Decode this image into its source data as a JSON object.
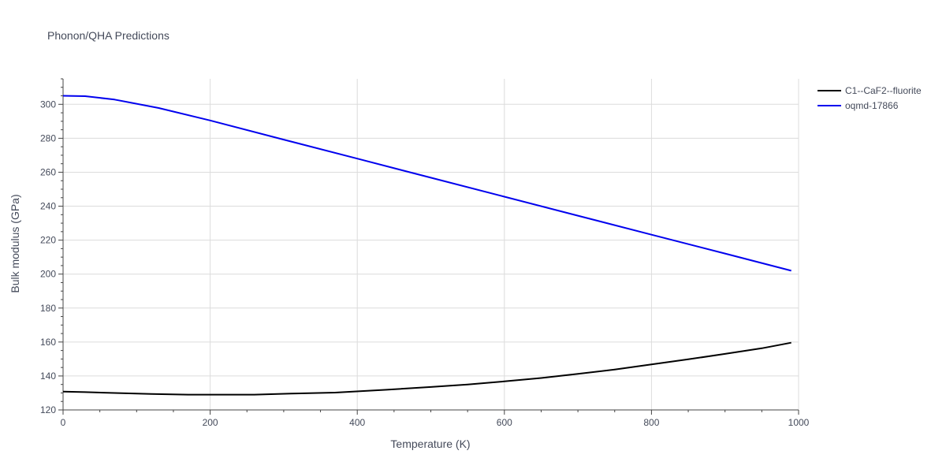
{
  "chart_data": {
    "type": "line",
    "title": "Phonon/QHA Predictions",
    "xlabel": "Temperature (K)",
    "ylabel": "Bulk modulus (GPa)",
    "xlim": [
      0,
      1000
    ],
    "ylim": [
      120,
      315
    ],
    "xticks": [
      0,
      200,
      400,
      600,
      800,
      1000
    ],
    "yticks": [
      120,
      140,
      160,
      180,
      200,
      220,
      240,
      260,
      280,
      300
    ],
    "grid": true,
    "legend_position": "top-right",
    "series": [
      {
        "name": "C1--CaF2--fluorite",
        "color": "#000000",
        "x": [
          0,
          30,
          70,
          120,
          170,
          220,
          260,
          310,
          370,
          440,
          500,
          550,
          600,
          650,
          700,
          750,
          800,
          850,
          900,
          950,
          990
        ],
        "y": [
          130.8,
          130.5,
          130.0,
          129.4,
          129.0,
          129.0,
          129.0,
          129.6,
          130.2,
          131.9,
          133.5,
          135.0,
          136.8,
          138.8,
          141.2,
          143.8,
          146.8,
          149.8,
          153.0,
          156.3,
          159.6
        ]
      },
      {
        "name": "oqmd-17866",
        "color": "#0000ee",
        "x": [
          0,
          30,
          70,
          130,
          200,
          300,
          400,
          500,
          600,
          700,
          800,
          900,
          990
        ],
        "y": [
          305.0,
          304.8,
          302.8,
          297.8,
          290.5,
          279.2,
          268.0,
          256.8,
          245.6,
          234.4,
          223.2,
          212.1,
          202.0
        ]
      }
    ]
  }
}
